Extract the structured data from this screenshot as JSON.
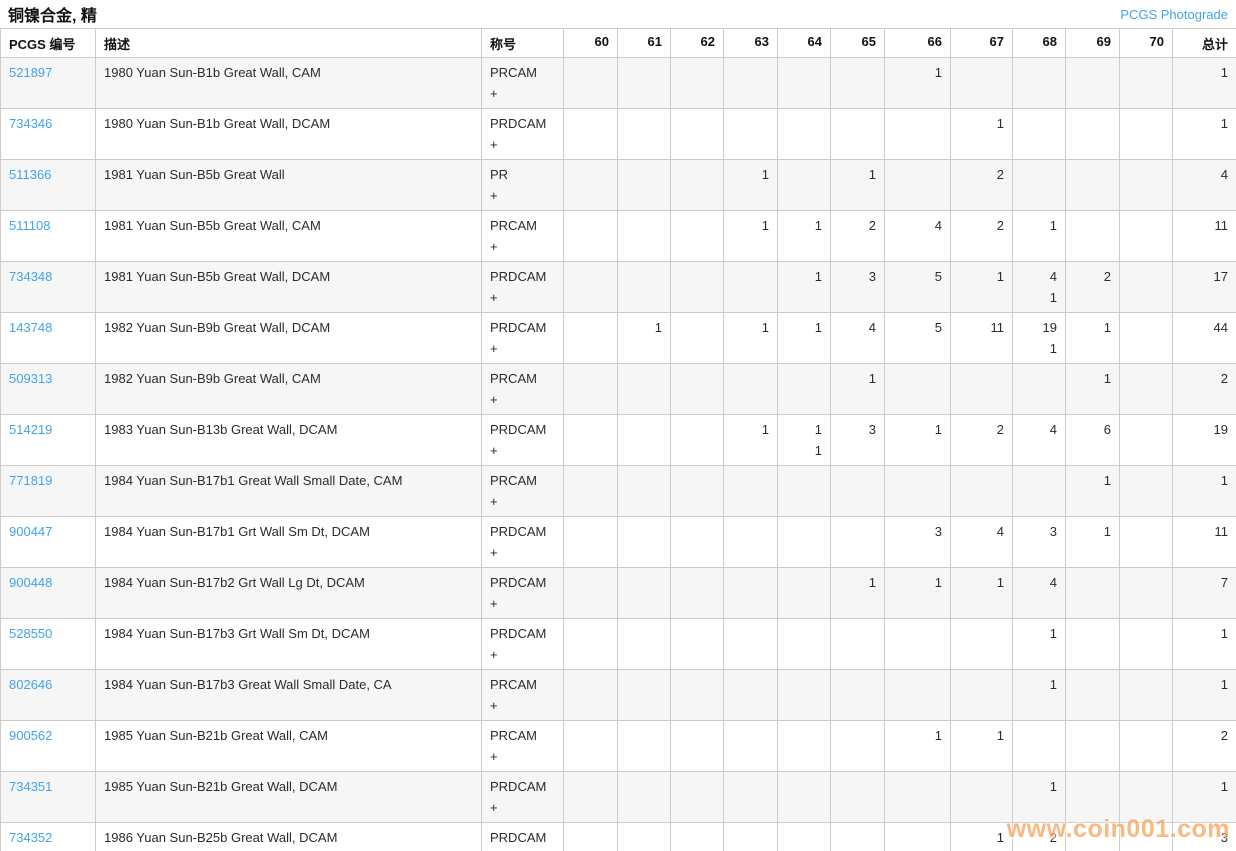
{
  "page": {
    "title": "铜镍合金, 精",
    "top_link": "PCGS Photograde",
    "watermark": "www.coin001.com"
  },
  "colors": {
    "link_blue": "#42a4e8",
    "row_alt_gray": "#f6f6f6",
    "border_gray": "#cccccc",
    "watermark_orange": "#f7a75e"
  },
  "table": {
    "headers": {
      "pcgs": "PCGS 编号",
      "desc": "描述",
      "desig": "称号",
      "grades": [
        "60",
        "61",
        "62",
        "63",
        "64",
        "65",
        "66",
        "67",
        "68",
        "69",
        "70"
      ],
      "total": "总计"
    },
    "rows": [
      {
        "pcgs_no": "521897",
        "desc": "1980 Yuan Sun-B1b Great Wall, CAM",
        "desig": [
          "PRCAM",
          "+"
        ],
        "grades": [
          "",
          "",
          "",
          "",
          "",
          "",
          "1",
          "",
          "",
          "",
          ""
        ],
        "total": "1"
      },
      {
        "pcgs_no": "734346",
        "desc": "1980 Yuan Sun-B1b Great Wall, DCAM",
        "desig": [
          "PRDCAM",
          "+"
        ],
        "grades": [
          "",
          "",
          "",
          "",
          "",
          "",
          "",
          "1",
          "",
          "",
          ""
        ],
        "total": "1"
      },
      {
        "pcgs_no": "511366",
        "desc": "1981 Yuan Sun-B5b Great Wall",
        "desig": [
          "PR",
          "+"
        ],
        "grades": [
          "",
          "",
          "",
          "1",
          "",
          "1",
          "",
          "2",
          "",
          "",
          ""
        ],
        "total": "4"
      },
      {
        "pcgs_no": "511108",
        "desc": "1981 Yuan Sun-B5b Great Wall, CAM",
        "desig": [
          "PRCAM",
          "+"
        ],
        "grades": [
          "",
          "",
          "",
          "1",
          "1",
          "2",
          "4",
          "2",
          "1",
          "",
          ""
        ],
        "total": "11"
      },
      {
        "pcgs_no": "734348",
        "desc": "1981 Yuan Sun-B5b Great Wall, DCAM",
        "desig": [
          "PRDCAM",
          "+"
        ],
        "grades": [
          "",
          "",
          "",
          "",
          "1",
          "3",
          "5",
          "1",
          "4\n1",
          "2",
          ""
        ],
        "total": "17"
      },
      {
        "pcgs_no": "143748",
        "desc": "1982 Yuan Sun-B9b Great Wall, DCAM",
        "desig": [
          "PRDCAM",
          "+"
        ],
        "grades": [
          "",
          "1",
          "",
          "1",
          "1",
          "4",
          "5",
          "11",
          "19\n1",
          "1",
          ""
        ],
        "total": "44"
      },
      {
        "pcgs_no": "509313",
        "desc": "1982 Yuan Sun-B9b Great Wall, CAM",
        "desig": [
          "PRCAM",
          "+"
        ],
        "grades": [
          "",
          "",
          "",
          "",
          "",
          "1",
          "",
          "",
          "",
          "1",
          ""
        ],
        "total": "2"
      },
      {
        "pcgs_no": "514219",
        "desc": "1983 Yuan Sun-B13b Great Wall, DCAM",
        "desig": [
          "PRDCAM",
          "+"
        ],
        "grades": [
          "",
          "",
          "",
          "1",
          "1\n1",
          "3",
          "1",
          "2",
          "4",
          "6",
          ""
        ],
        "total": "19"
      },
      {
        "pcgs_no": "771819",
        "desc": "1984 Yuan Sun-B17b1 Great Wall Small Date, CAM",
        "desig": [
          "PRCAM",
          "+"
        ],
        "grades": [
          "",
          "",
          "",
          "",
          "",
          "",
          "",
          "",
          "",
          "1",
          ""
        ],
        "total": "1"
      },
      {
        "pcgs_no": "900447",
        "desc": "1984 Yuan Sun-B17b1 Grt Wall Sm Dt, DCAM",
        "desig": [
          "PRDCAM",
          "+"
        ],
        "grades": [
          "",
          "",
          "",
          "",
          "",
          "",
          "3",
          "4",
          "3",
          "1",
          ""
        ],
        "total": "11"
      },
      {
        "pcgs_no": "900448",
        "desc": "1984 Yuan Sun-B17b2 Grt Wall Lg Dt, DCAM",
        "desig": [
          "PRDCAM",
          "+"
        ],
        "grades": [
          "",
          "",
          "",
          "",
          "",
          "1",
          "1",
          "1",
          "4",
          "",
          ""
        ],
        "total": "7"
      },
      {
        "pcgs_no": "528550",
        "desc": "1984 Yuan Sun-B17b3 Grt Wall Sm Dt, DCAM",
        "desig": [
          "PRDCAM",
          "+"
        ],
        "grades": [
          "",
          "",
          "",
          "",
          "",
          "",
          "",
          "",
          "1",
          "",
          ""
        ],
        "total": "1"
      },
      {
        "pcgs_no": "802646",
        "desc": "1984 Yuan Sun-B17b3 Great Wall Small Date, CA",
        "desig": [
          "PRCAM",
          "+"
        ],
        "grades": [
          "",
          "",
          "",
          "",
          "",
          "",
          "",
          "",
          "1",
          "",
          ""
        ],
        "total": "1"
      },
      {
        "pcgs_no": "900562",
        "desc": "1985 Yuan Sun-B21b Great Wall, CAM",
        "desig": [
          "PRCAM",
          "+"
        ],
        "grades": [
          "",
          "",
          "",
          "",
          "",
          "",
          "1",
          "1",
          "",
          "",
          ""
        ],
        "total": "2"
      },
      {
        "pcgs_no": "734351",
        "desc": "1985 Yuan Sun-B21b Great Wall, DCAM",
        "desig": [
          "PRDCAM",
          "+"
        ],
        "grades": [
          "",
          "",
          "",
          "",
          "",
          "",
          "",
          "",
          "1",
          "",
          ""
        ],
        "total": "1"
      },
      {
        "pcgs_no": "734352",
        "desc": "1986 Yuan Sun-B25b Great Wall, DCAM",
        "desig": [
          "PRDCAM",
          "+"
        ],
        "grades": [
          "",
          "",
          "",
          "",
          "",
          "",
          "",
          "1",
          "2",
          "",
          ""
        ],
        "total": "3"
      }
    ]
  }
}
